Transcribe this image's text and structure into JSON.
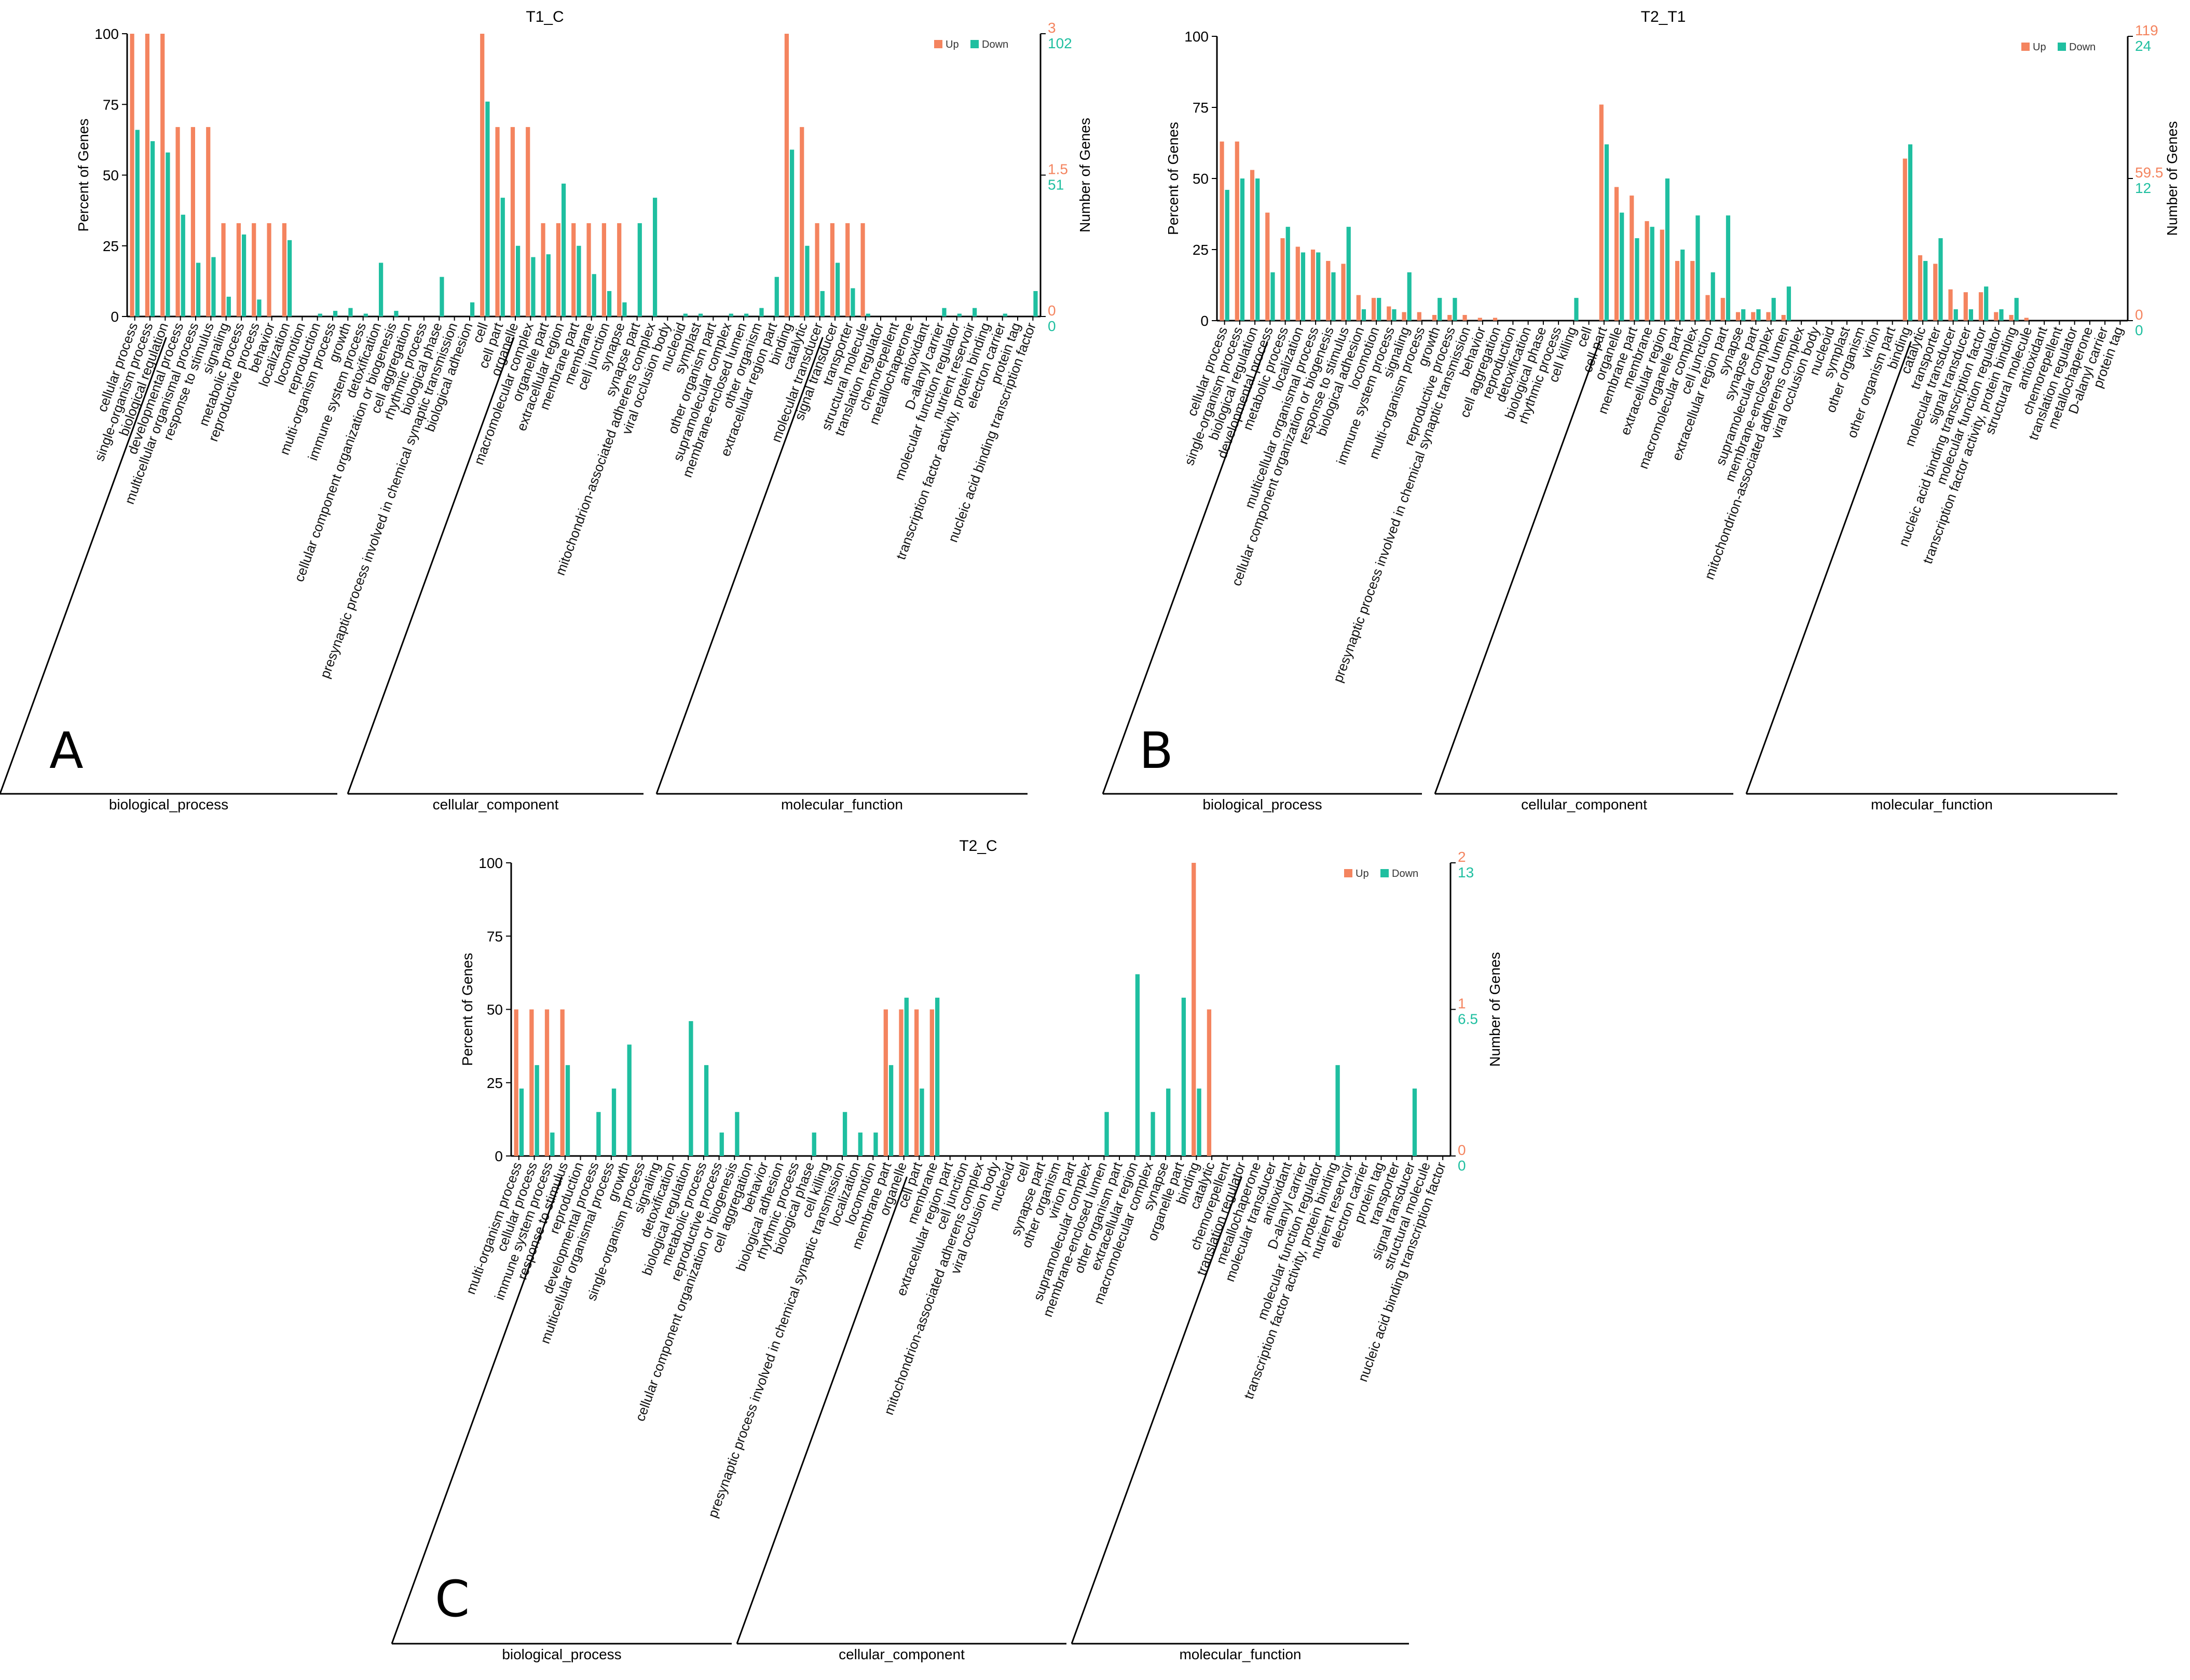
{
  "colors": {
    "up": "#f4845f",
    "down": "#1fbfa0",
    "axis": "#000000",
    "tick_text": "#333333"
  },
  "chart_data": [
    {
      "panel_label": "A",
      "type": "bar",
      "title": "T1_C",
      "ylabel": "Percent of Genes",
      "y2label": "Number of Genes",
      "ylim": [
        0,
        100
      ],
      "yticks": [
        "0",
        "25",
        "50",
        "75",
        "100"
      ],
      "right_axis": {
        "up_ticks": [
          "0",
          "1.5",
          "3"
        ],
        "down_ticks": [
          "0",
          "51",
          "102"
        ]
      },
      "legend": {
        "position": "top-right",
        "items": [
          "Up",
          "Down"
        ]
      },
      "groups": [
        {
          "name": "biological_process",
          "count": 23
        },
        {
          "name": "cellular_component",
          "count": 19
        },
        {
          "name": "molecular_function",
          "count": 18
        }
      ],
      "categories": [
        "cellular process",
        "single-organism process",
        "biological regulation",
        "developmental process",
        "multicellular organismal process",
        "response to stimulus",
        "signaling",
        "metabolic process",
        "reproductive process",
        "behavior",
        "localization",
        "locomotion",
        "reproduction",
        "multi-organism process",
        "growth",
        "immune system process",
        "detoxification",
        "cellular component organization or biogenesis",
        "cell aggregation",
        "rhythmic process",
        "biological phase",
        "presynaptic process involved in chemical synaptic transmission",
        "biological adhesion",
        "cell",
        "cell part",
        "organelle",
        "macromolecular complex",
        "organelle part",
        "extracellular region",
        "membrane part",
        "membrane",
        "cell junction",
        "synapse",
        "synapse part",
        "mitochondrion-associated adherens complex",
        "viral occlusion body",
        "nucleoid",
        "symplast",
        "other organism part",
        "supramolecular complex",
        "membrane-enclosed lumen",
        "other organism",
        "extracellular region part",
        "binding",
        "catalytic",
        "molecular transducer",
        "signal transducer",
        "transporter",
        "structural molecule",
        "translation regulator",
        "chemorepellent",
        "metallochaperone",
        "antioxidant",
        "D-alanyl carrier",
        "molecular function regulator",
        "nutrient reservoir",
        "transcription factor activity, protein binding",
        "electron carrier",
        "protein tag",
        "nucleic acid binding transcription factor"
      ],
      "series": [
        {
          "name": "Up",
          "values": [
            100,
            100,
            100,
            67,
            67,
            67,
            33,
            33,
            33,
            33,
            33,
            0,
            0,
            0,
            0,
            0,
            0,
            0,
            0,
            0,
            0,
            0,
            0,
            100,
            67,
            67,
            67,
            33,
            33,
            33,
            33,
            33,
            33,
            0,
            0,
            0,
            0,
            0,
            0,
            0,
            0,
            0,
            0,
            100,
            67,
            33,
            33,
            33,
            33,
            0,
            0,
            0,
            0,
            0,
            0,
            0,
            0,
            0,
            0,
            0
          ]
        },
        {
          "name": "Down",
          "values": [
            66,
            62,
            58,
            36,
            19,
            21,
            7,
            29,
            6,
            0,
            27,
            0,
            1,
            2,
            3,
            1,
            19,
            2,
            0,
            0,
            14,
            0,
            5,
            76,
            42,
            25,
            21,
            22,
            47,
            25,
            15,
            9,
            5,
            33,
            42,
            0,
            1,
            1,
            0,
            1,
            1,
            3,
            14,
            59,
            25,
            9,
            19,
            10,
            1,
            0,
            0,
            0,
            0,
            3,
            1,
            3,
            0,
            1,
            0,
            9
          ]
        }
      ]
    },
    {
      "panel_label": "B",
      "type": "bar",
      "title": "T2_T1",
      "ylabel": "Percent of Genes",
      "y2label": "Number of Genes",
      "ylim": [
        0,
        100
      ],
      "yticks": [
        "0",
        "25",
        "50",
        "75",
        "100"
      ],
      "right_axis": {
        "up_ticks": [
          "0",
          "59.5",
          "119"
        ],
        "down_ticks": [
          "0",
          "12",
          "24"
        ]
      },
      "legend": {
        "position": "top-right",
        "items": [
          "Up",
          "Down"
        ]
      },
      "groups": [
        {
          "name": "biological_process",
          "count": 23
        },
        {
          "name": "cellular_component",
          "count": 19
        },
        {
          "name": "molecular_function",
          "count": 18
        }
      ],
      "categories": [
        "cellular process",
        "single-organism process",
        "biological regulation",
        "developmental process",
        "metabolic process",
        "localization",
        "multicellular organismal process",
        "cellular component organization or biogenesis",
        "response to stimulus",
        "biological adhesion",
        "locomotion",
        "immune system process",
        "signaling",
        "multi-organism process",
        "growth",
        "reproductive process",
        "presynaptic process involved in chemical synaptic transmission",
        "behavior",
        "cell aggregation",
        "reproduction",
        "detoxification",
        "biological phase",
        "rhythmic process",
        "cell killing",
        "cell",
        "cell part",
        "organelle",
        "membrane part",
        "membrane",
        "extracellular region",
        "organelle part",
        "macromolecular complex",
        "cell junction",
        "extracellular region part",
        "synapse",
        "synapse part",
        "supramolecular complex",
        "membrane-enclosed lumen",
        "mitochondrion-associated adherens complex",
        "viral occlusion body",
        "nucleoid",
        "symplast",
        "other organism",
        "virion",
        "other organism part",
        "binding",
        "catalytic",
        "transporter",
        "molecular transducer",
        "signal transducer",
        "nucleic acid binding transcription factor",
        "molecular function regulator",
        "transcription factor activity, protein binding",
        "structural molecule",
        "antioxidant",
        "chemorepellent",
        "translation regulator",
        "metallochaperone",
        "D-alanyl carrier",
        "protein tag"
      ],
      "series": [
        {
          "name": "Up",
          "values": [
            63,
            63,
            53,
            38,
            29,
            26,
            25,
            21,
            20,
            9,
            8,
            5,
            3,
            3,
            2,
            2,
            2,
            1,
            1,
            0,
            0,
            0,
            0,
            0,
            0,
            76,
            47,
            44,
            35,
            32,
            21,
            21,
            9,
            8,
            3,
            3,
            3,
            2,
            0,
            0,
            0,
            0,
            0,
            0,
            0,
            57,
            23,
            20,
            11,
            10,
            10,
            3,
            2,
            1,
            0,
            0,
            0,
            0,
            0,
            0
          ]
        },
        {
          "name": "Down",
          "values": [
            46,
            50,
            50,
            17,
            33,
            24,
            24,
            17,
            33,
            4,
            8,
            4,
            17,
            0,
            8,
            8,
            0,
            0,
            0,
            0,
            0,
            0,
            0,
            8,
            0,
            62,
            38,
            29,
            33,
            50,
            25,
            37,
            17,
            37,
            4,
            4,
            8,
            12,
            0,
            0,
            0,
            0,
            0,
            0,
            0,
            62,
            21,
            29,
            4,
            4,
            12,
            4,
            8,
            0,
            0,
            0,
            0,
            0,
            0,
            0
          ]
        }
      ]
    },
    {
      "panel_label": "C",
      "type": "bar",
      "title": "T2_C",
      "ylabel": "Percent of Genes",
      "y2label": "Number of Genes",
      "ylim": [
        0,
        100
      ],
      "yticks": [
        "0",
        "25",
        "50",
        "75",
        "100"
      ],
      "right_axis": {
        "up_ticks": [
          "0",
          "1",
          "2"
        ],
        "down_ticks": [
          "0",
          "6.5",
          "13"
        ]
      },
      "legend": {
        "position": "top-right",
        "items": [
          "Up",
          "Down"
        ]
      },
      "groups": [
        {
          "name": "biological_process",
          "count": 23
        },
        {
          "name": "cellular_component",
          "count": 21
        },
        {
          "name": "molecular_function",
          "count": 17
        }
      ],
      "categories": [
        "multi-organism process",
        "cellular process",
        "immune system process",
        "response to stimulus",
        "reproduction",
        "developmental process",
        "multicellular organismal process",
        "growth",
        "single-organism process",
        "signaling",
        "detoxification",
        "biological regulation",
        "metabolic process",
        "reproductive process",
        "cellular component organization or biogenesis",
        "cell aggregation",
        "behavior",
        "biological adhesion",
        "rhythmic process",
        "biological phase",
        "cell killing",
        "presynaptic process involved in chemical synaptic transmission",
        "localization",
        "locomotion",
        "membrane part",
        "organelle",
        "cell part",
        "membrane",
        "extracellular region part",
        "cell junction",
        "mitochondrion-associated adherens complex",
        "viral occlusion body",
        "nucleoid",
        "cell",
        "synapse part",
        "other organism",
        "virion part",
        "supramolecular complex",
        "membrane-enclosed lumen",
        "other organism part",
        "extracellular region",
        "macromolecular complex",
        "synapse",
        "organelle part",
        "binding",
        "catalytic",
        "chemorepellent",
        "translation regulator",
        "metallochaperone",
        "molecular transducer",
        "antioxidant",
        "D-alanyl carrier",
        "molecular function regulator",
        "transcription factor activity, protein binding",
        "nutrient reservoir",
        "electron carrier",
        "protein tag",
        "transporter",
        "signal transducer",
        "structural molecule",
        "nucleic acid binding transcription factor"
      ],
      "series": [
        {
          "name": "Up",
          "values": [
            50,
            50,
            50,
            50,
            0,
            0,
            0,
            0,
            0,
            0,
            0,
            0,
            0,
            0,
            0,
            0,
            0,
            0,
            0,
            0,
            0,
            0,
            0,
            0,
            50,
            50,
            50,
            50,
            0,
            0,
            0,
            0,
            0,
            0,
            0,
            0,
            0,
            0,
            0,
            0,
            0,
            0,
            0,
            0,
            100,
            50,
            0,
            0,
            0,
            0,
            0,
            0,
            0,
            0,
            0,
            0,
            0,
            0,
            0,
            0,
            0
          ]
        },
        {
          "name": "Down",
          "values": [
            23,
            31,
            8,
            31,
            0,
            15,
            23,
            38,
            0,
            0,
            0,
            46,
            31,
            8,
            15,
            0,
            0,
            0,
            0,
            8,
            0,
            15,
            8,
            8,
            31,
            54,
            23,
            54,
            0,
            0,
            0,
            0,
            0,
            0,
            0,
            0,
            0,
            0,
            15,
            0,
            62,
            15,
            23,
            54,
            23,
            0,
            0,
            0,
            0,
            0,
            0,
            0,
            0,
            31,
            0,
            0,
            0,
            0,
            23,
            0,
            0
          ]
        }
      ]
    }
  ]
}
